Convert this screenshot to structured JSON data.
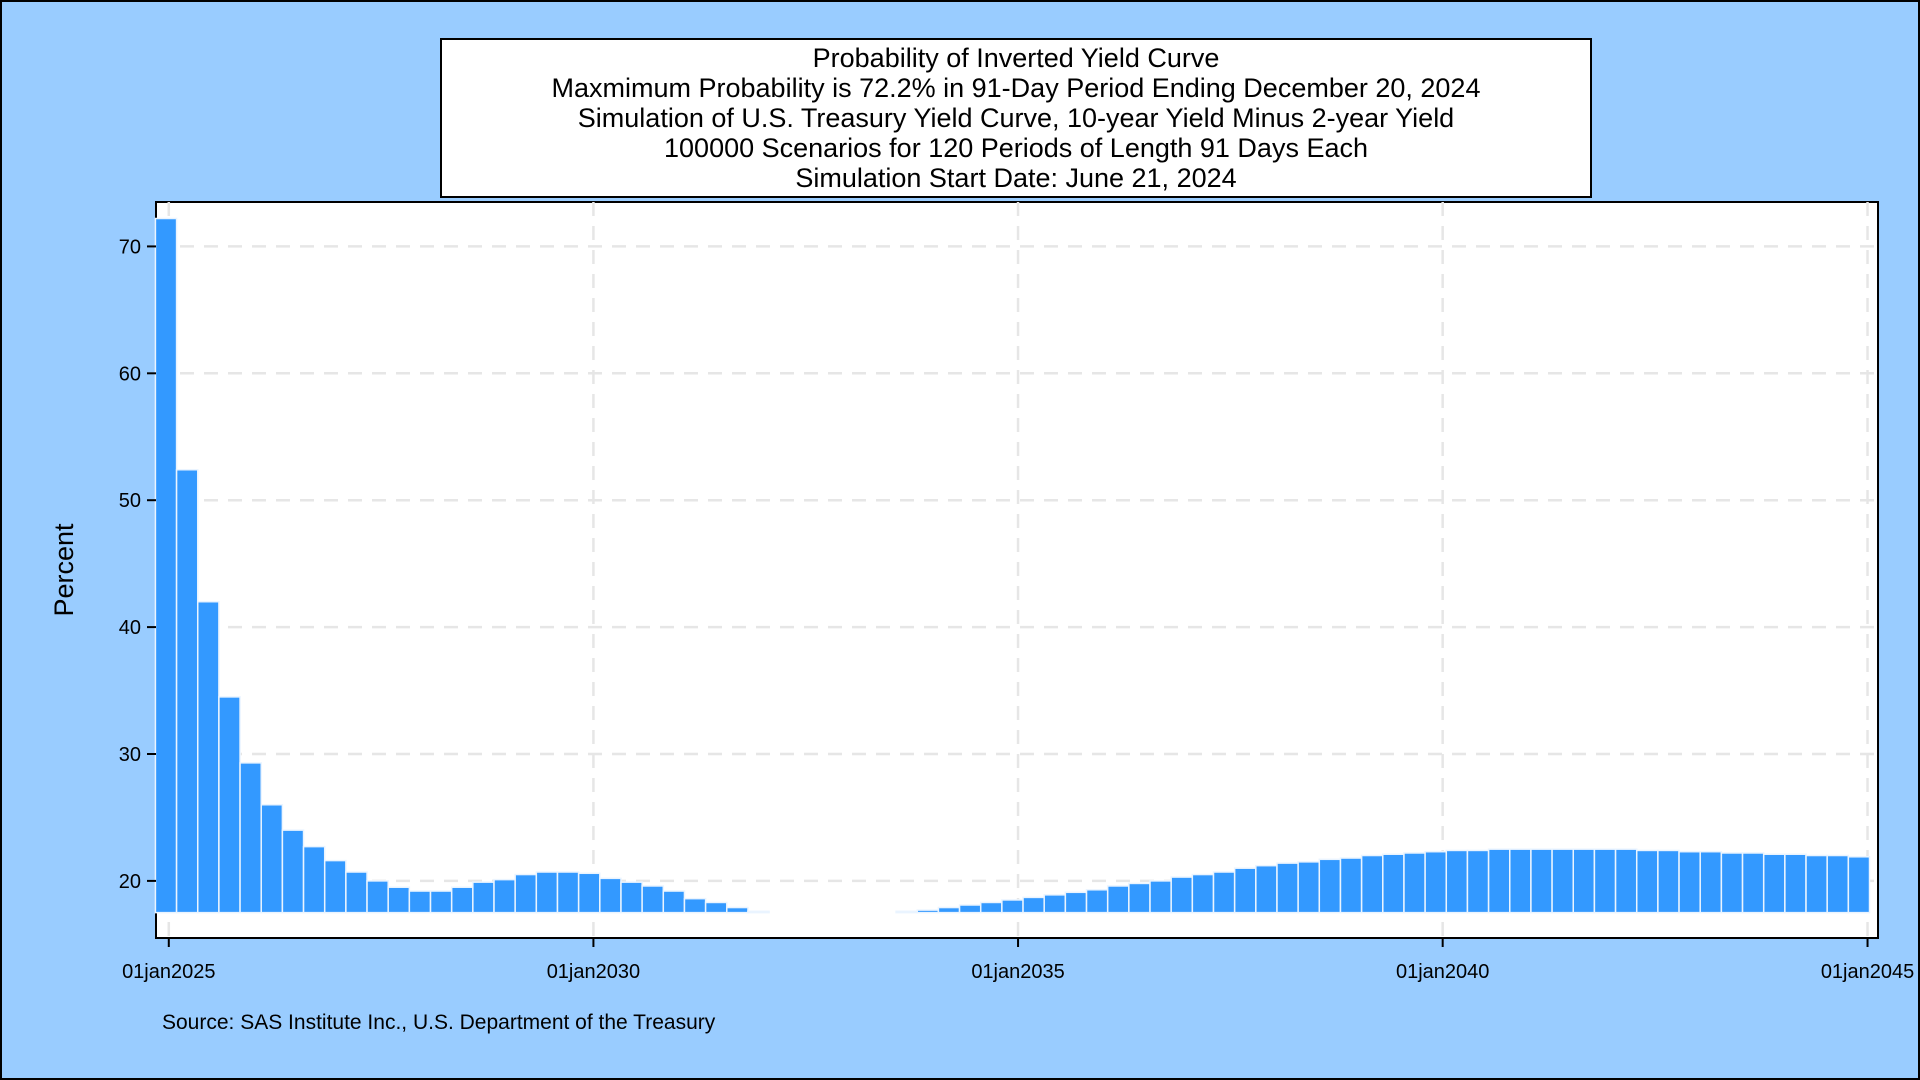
{
  "colors": {
    "background": "#99ccff",
    "plot_area": "#ffffff",
    "bar_fill": "#3399ff",
    "bar_outline": "#eaf4ff",
    "gridline": "#e6e6e6",
    "text": "#000000"
  },
  "title_lines": [
    "Probability of Inverted Yield Curve",
    "Maxmimum Probability is 72.2% in 91-Day Period Ending December 20, 2024",
    "Simulation of U.S. Treasury Yield Curve, 10-year Yield Minus 2-year Yield",
    "100000 Scenarios for 120 Periods of Length 91 Days Each",
    "Simulation Start Date: June 21, 2024"
  ],
  "source": "Source: SAS Institute Inc., U.S. Department of the Treasury",
  "chart_data": {
    "type": "bar",
    "title": "Probability of Inverted Yield Curve",
    "ylabel": "Percent",
    "xlabel": "",
    "x_axis": "date",
    "xlim": [
      "2024-11-07",
      "2045-02-15"
    ],
    "ylim": [
      15.5,
      73.5
    ],
    "bar_base": 17.5,
    "bar_width_days": 91,
    "grid": "dashed, both axes",
    "legend": "none",
    "x_ticks": [
      {
        "date": "2025-01-01",
        "label": "01jan2025"
      },
      {
        "date": "2030-01-01",
        "label": "01jan2030"
      },
      {
        "date": "2035-01-01",
        "label": "01jan2035"
      },
      {
        "date": "2040-01-01",
        "label": "01jan2040"
      },
      {
        "date": "2045-01-01",
        "label": "01jan2045"
      }
    ],
    "y_ticks": [
      20,
      30,
      40,
      50,
      60,
      70
    ],
    "series": [
      {
        "first_period_end": "2024-12-20",
        "period_days": 91,
        "values": [
          72.2,
          52.4,
          42.0,
          34.5,
          29.3,
          26.0,
          24.0,
          22.7,
          21.6,
          20.7,
          20.0,
          19.5,
          19.2,
          19.2,
          19.5,
          19.9,
          20.1,
          20.5,
          20.7,
          20.7,
          20.6,
          20.2,
          19.9,
          19.6,
          19.2,
          18.6,
          18.3,
          17.9,
          17.6,
          17.5,
          17.5,
          17.5,
          17.5,
          17.5,
          17.5,
          17.6,
          17.7,
          17.9,
          18.1,
          18.3,
          18.5,
          18.7,
          18.9,
          19.1,
          19.3,
          19.6,
          19.8,
          20.0,
          20.3,
          20.5,
          20.7,
          21.0,
          21.2,
          21.4,
          21.5,
          21.7,
          21.8,
          22.0,
          22.1,
          22.2,
          22.3,
          22.4,
          22.4,
          22.5,
          22.5,
          22.5,
          22.5,
          22.5,
          22.5,
          22.5,
          22.4,
          22.4,
          22.3,
          22.3,
          22.2,
          22.2,
          22.1,
          22.1,
          22.0,
          22.0,
          21.9
        ]
      }
    ]
  }
}
